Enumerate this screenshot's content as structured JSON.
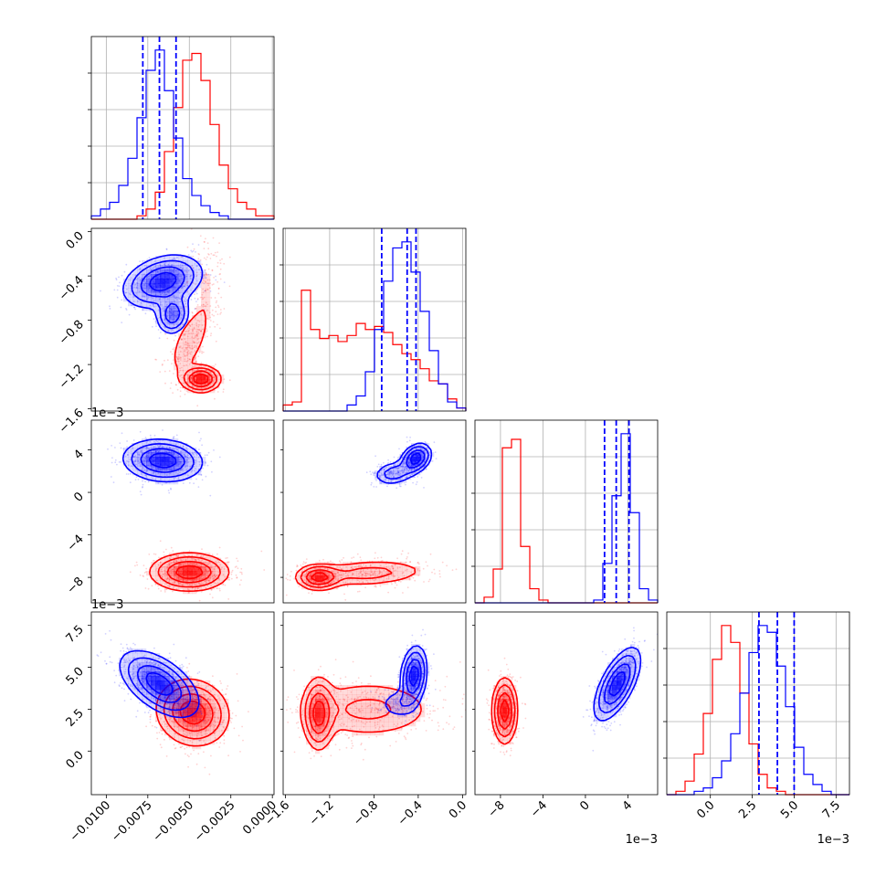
{
  "chart_data": {
    "type": "corner",
    "grid": true,
    "colors": {
      "series_a": "#0000ff",
      "series_b": "#ff0000"
    },
    "series": [
      {
        "color": "#0000ff"
      },
      {
        "color": "#ff0000"
      }
    ],
    "parameters": [
      {
        "range": [
          -0.0109,
          0.0001
        ],
        "ticks": [
          -0.01,
          -0.0075,
          -0.005,
          -0.0025,
          0.0
        ],
        "tick_labels": [
          "−0.0100",
          "−0.0075",
          "−0.0050",
          "−0.0025",
          "0.0000"
        ],
        "offset_label": ""
      },
      {
        "range": [
          -0.00162,
          3e-05
        ],
        "ticks": [
          -0.0016,
          -0.0012,
          -0.0008,
          -0.0004,
          0.0
        ],
        "tick_labels": [
          "−1.6",
          "−1.2",
          "−0.8",
          "−0.4",
          "0.0"
        ],
        "offset_label": "1e−3"
      },
      {
        "range": [
          -0.0104,
          0.0068
        ],
        "ticks": [
          -0.008,
          -0.004,
          0.0,
          0.004
        ],
        "tick_labels": [
          "−8",
          "−4",
          "0",
          "4"
        ],
        "offset_label": "1e−3"
      },
      {
        "range": [
          -0.0026,
          0.0083
        ],
        "ticks": [
          0.0,
          0.0025,
          0.005,
          0.0075
        ],
        "tick_labels": [
          "0.0",
          "2.5",
          "5.0",
          "7.5"
        ],
        "offset_label": "1e−3"
      }
    ],
    "marginals": [
      {
        "bins": [
          -0.0109,
          0.0001,
          20
        ],
        "blue": [
          1,
          3,
          5,
          10,
          18,
          30,
          44,
          50,
          38,
          24,
          12,
          7,
          4,
          2,
          1,
          0,
          0,
          0,
          0,
          0
        ],
        "red": [
          0,
          0,
          0,
          0,
          0,
          1,
          3,
          8,
          20,
          33,
          47,
          49,
          41,
          28,
          16,
          9,
          5,
          3,
          1,
          1
        ],
        "quantiles": [
          -0.0078,
          -0.0068,
          -0.0058
        ]
      },
      {
        "bins": [
          -0.00162,
          3e-05,
          20
        ],
        "blue": [
          0,
          0,
          0,
          0,
          0,
          0,
          0,
          2,
          5,
          13,
          27,
          43,
          54,
          56,
          46,
          33,
          20,
          9,
          3,
          1
        ],
        "red": [
          2,
          3,
          40,
          27,
          24,
          25,
          23,
          25,
          29,
          27,
          28,
          26,
          22,
          19,
          17,
          14,
          10,
          9,
          4,
          1
        ],
        "quantiles": [
          -0.00073,
          -0.0005,
          -0.00042
        ]
      },
      {
        "bins": [
          -0.0104,
          0.0068,
          20
        ],
        "blue": [
          0,
          0,
          0,
          0,
          0,
          0,
          0,
          0,
          0,
          0,
          0,
          0,
          0,
          1,
          14,
          38,
          60,
          32,
          5,
          1
        ],
        "red": [
          0,
          2,
          12,
          55,
          58,
          20,
          5,
          1,
          0,
          0,
          0,
          0,
          0,
          0,
          0,
          0,
          0,
          0,
          0,
          0
        ],
        "quantiles": [
          0.0018,
          0.0029,
          0.0041
        ]
      },
      {
        "bins": [
          -0.0026,
          0.0083,
          20
        ],
        "blue": [
          0,
          0,
          0,
          1,
          2,
          5,
          10,
          18,
          30,
          42,
          50,
          48,
          38,
          26,
          14,
          6,
          3,
          1,
          0,
          0
        ],
        "red": [
          0,
          1,
          4,
          12,
          24,
          40,
          50,
          45,
          30,
          15,
          6,
          2,
          1,
          0,
          0,
          0,
          0,
          0,
          0,
          0
        ],
        "quantiles": [
          0.0029,
          0.004,
          0.005
        ]
      }
    ],
    "joint_distributions": [
      {
        "x_param": 0,
        "y_param": 1,
        "blue": [
          {
            "mean": [
              -0.0066,
              -0.00045
            ],
            "sd": [
              0.0012,
              0.00012
            ],
            "rho": 0.3,
            "w": 0.8
          },
          {
            "mean": [
              -0.006,
              -0.00075
            ],
            "sd": [
              0.0005,
              9e-05
            ],
            "rho": 0.1,
            "w": 0.2
          }
        ],
        "red": [
          {
            "mean": [
              -0.0043,
              -0.00133
            ],
            "sd": [
              0.0006,
              6e-05
            ],
            "rho": 0.0,
            "w": 0.45
          },
          {
            "mean": [
              -0.005,
              -0.001
            ],
            "sd": [
              0.0007,
              0.00018
            ],
            "rho": 0.6,
            "w": 0.35
          },
          {
            "mean": [
              -0.004,
              -0.00045
            ],
            "sd": [
              0.0006,
              0.00022
            ],
            "rho": 0.0,
            "w": 0.2
          }
        ]
      },
      {
        "x_param": 0,
        "y_param": 2,
        "blue": [
          {
            "mean": [
              -0.0066,
              0.003
            ],
            "sd": [
              0.0012,
              0.001
            ],
            "rho": -0.1,
            "w": 1
          }
        ],
        "red": [
          {
            "mean": [
              -0.005,
              -0.0075
            ],
            "sd": [
              0.0012,
              0.0009
            ],
            "rho": 0.0,
            "w": 1
          }
        ]
      },
      {
        "x_param": 0,
        "y_param": 3,
        "blue": [
          {
            "mean": [
              -0.0068,
              0.004
            ],
            "sd": [
              0.0012,
              0.001
            ],
            "rho": -0.55,
            "w": 1
          }
        ],
        "red": [
          {
            "mean": [
              -0.0048,
              0.0023
            ],
            "sd": [
              0.0011,
              0.001
            ],
            "rho": -0.1,
            "w": 1
          }
        ]
      },
      {
        "x_param": 1,
        "y_param": 2,
        "blue": [
          {
            "mean": [
              -0.00042,
              0.0032
            ],
            "sd": [
              7e-05,
              0.0007
            ],
            "rho": 0.3,
            "w": 0.65
          },
          {
            "mean": [
              -0.00062,
              0.0018
            ],
            "sd": [
              0.0001,
              0.0006
            ],
            "rho": 0.2,
            "w": 0.35
          }
        ],
        "red": [
          {
            "mean": [
              -0.0013,
              -0.008
            ],
            "sd": [
              0.0001,
              0.0006
            ],
            "rho": 0.0,
            "w": 0.4
          },
          {
            "mean": [
              -0.00085,
              -0.0076
            ],
            "sd": [
              0.0003,
              0.0007
            ],
            "rho": 0.2,
            "w": 0.6
          }
        ]
      },
      {
        "x_param": 1,
        "y_param": 3,
        "blue": [
          {
            "mean": [
              -0.00044,
              0.0045
            ],
            "sd": [
              6e-05,
              0.0009
            ],
            "rho": 0.2,
            "w": 0.8
          },
          {
            "mean": [
              -0.00058,
              0.0028
            ],
            "sd": [
              0.0001,
              0.0005
            ],
            "rho": 0.0,
            "w": 0.2
          }
        ],
        "red": [
          {
            "mean": [
              -0.0013,
              0.0022
            ],
            "sd": [
              7e-05,
              0.0011
            ],
            "rho": 0.0,
            "w": 0.35
          },
          {
            "mean": [
              -0.00085,
              0.0025
            ],
            "sd": [
              0.00035,
              0.001
            ],
            "rho": 0.0,
            "w": 0.65
          }
        ]
      },
      {
        "x_param": 2,
        "y_param": 3,
        "blue": [
          {
            "mean": [
              0.003,
              0.004
            ],
            "sd": [
              0.0011,
              0.0011
            ],
            "rho": 0.65,
            "w": 1
          }
        ],
        "red": [
          {
            "mean": [
              -0.0076,
              0.0024
            ],
            "sd": [
              0.0006,
              0.001
            ],
            "rho": 0.0,
            "w": 1
          }
        ]
      }
    ]
  }
}
